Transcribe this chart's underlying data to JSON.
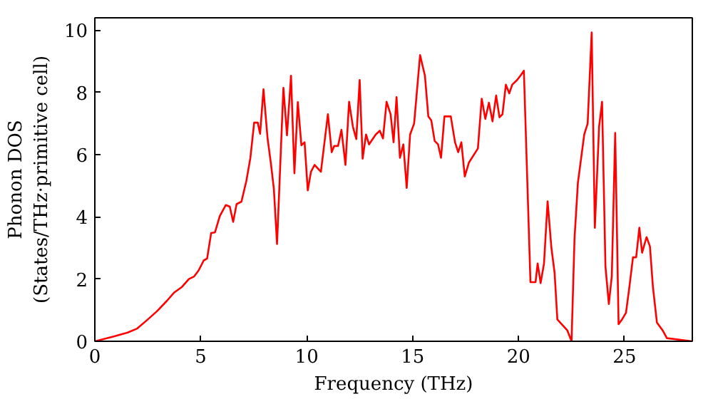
{
  "chart_data": {
    "type": "line",
    "xlabel": "Frequency (THz)",
    "ylabel": "Phonon DOS\n(States/THz·primitive cell)",
    "xlim": [
      0,
      28.2
    ],
    "ylim": [
      0,
      10.4
    ],
    "xticks": [
      0,
      5,
      10,
      15,
      20,
      25
    ],
    "yticks": [
      0,
      2,
      4,
      6,
      8,
      10
    ],
    "grid": false,
    "line_style": "solid",
    "series": [
      {
        "color": "#ff0000",
        "x": [
          0,
          0.86,
          1.55,
          2.0,
          2.48,
          2.94,
          3.4,
          3.75,
          4.1,
          4.44,
          4.68,
          4.9,
          5.14,
          5.3,
          5.49,
          5.67,
          5.9,
          6.18,
          6.37,
          6.53,
          6.69,
          6.92,
          7.15,
          7.34,
          7.52,
          7.69,
          7.8,
          7.96,
          8.15,
          8.31,
          8.45,
          8.6,
          8.9,
          9.07,
          9.26,
          9.42,
          9.58,
          9.75,
          9.9,
          10.05,
          10.2,
          10.37,
          10.67,
          11.0,
          11.18,
          11.3,
          11.48,
          11.64,
          11.83,
          12.0,
          12.18,
          12.34,
          12.5,
          12.64,
          12.8,
          12.94,
          13.26,
          13.45,
          13.6,
          13.77,
          13.96,
          14.1,
          14.24,
          14.4,
          14.56,
          14.72,
          14.88,
          15.07,
          15.35,
          15.58,
          15.74,
          15.88,
          16.04,
          16.2,
          16.34,
          16.5,
          16.8,
          17.0,
          17.15,
          17.3,
          17.46,
          17.66,
          18.08,
          18.26,
          18.43,
          18.6,
          18.77,
          18.94,
          19.1,
          19.24,
          19.4,
          19.56,
          19.7,
          19.93,
          20.1,
          20.25,
          20.56,
          20.8,
          20.9,
          21.04,
          21.2,
          21.37,
          21.55,
          21.7,
          21.83,
          22.3,
          22.5,
          22.64,
          22.8,
          23.1,
          23.26,
          23.45,
          23.6,
          23.8,
          23.94,
          24.1,
          24.26,
          24.4,
          24.56,
          24.72,
          24.88,
          25.07,
          25.23,
          25.4,
          25.55,
          25.7,
          25.83,
          26.04,
          26.2,
          26.34,
          26.53,
          26.8,
          27.0,
          28.2
        ],
        "values": [
          0,
          0.15,
          0.28,
          0.41,
          0.69,
          0.97,
          1.3,
          1.57,
          1.74,
          2.0,
          2.08,
          2.28,
          2.6,
          2.66,
          3.48,
          3.5,
          4.03,
          4.38,
          4.33,
          3.84,
          4.41,
          4.49,
          5.15,
          5.89,
          7.03,
          7.03,
          6.67,
          8.1,
          6.54,
          5.72,
          4.9,
          3.13,
          8.15,
          6.62,
          8.54,
          5.4,
          7.69,
          6.3,
          6.4,
          4.85,
          5.45,
          5.67,
          5.45,
          7.3,
          6.08,
          6.28,
          6.28,
          6.8,
          5.67,
          7.7,
          6.9,
          6.5,
          8.4,
          5.87,
          6.65,
          6.33,
          6.65,
          6.77,
          6.52,
          7.7,
          7.3,
          6.4,
          7.85,
          5.9,
          6.33,
          4.93,
          6.65,
          7.0,
          9.2,
          8.54,
          7.23,
          7.1,
          6.44,
          6.33,
          5.9,
          7.23,
          7.23,
          6.4,
          6.08,
          6.4,
          5.3,
          5.75,
          6.2,
          7.8,
          7.15,
          7.67,
          7.07,
          7.9,
          7.2,
          7.3,
          8.25,
          7.97,
          8.25,
          8.4,
          8.55,
          8.7,
          1.9,
          1.9,
          2.5,
          1.87,
          2.5,
          4.5,
          3.0,
          2.2,
          0.7,
          0.35,
          0,
          3.3,
          5.1,
          6.65,
          7.0,
          9.93,
          3.65,
          6.9,
          7.7,
          2.4,
          1.2,
          2.1,
          6.7,
          0.55,
          0.7,
          0.92,
          1.75,
          2.7,
          2.7,
          3.65,
          2.85,
          3.35,
          3.05,
          1.75,
          0.6,
          0.35,
          0.1,
          0
        ]
      }
    ]
  }
}
